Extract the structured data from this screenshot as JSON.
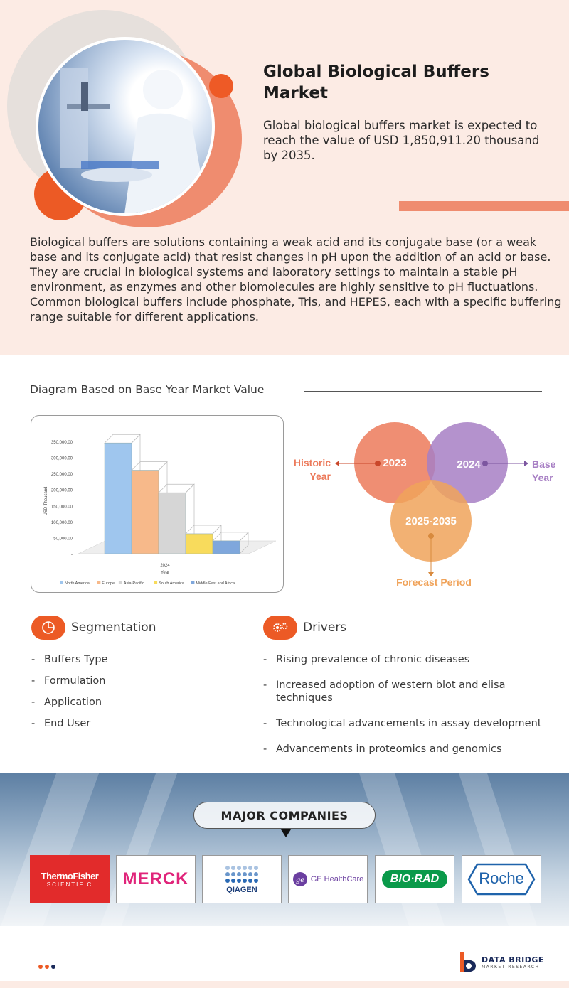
{
  "hero": {
    "title": "Global Biological Buffers Market",
    "subtitle": "Global biological buffers market is expected to reach the value of USD 1,850,911.20 thousand by 2035.",
    "description": "Biological buffers are solutions containing a weak acid and its conjugate base (or a weak base and its conjugate acid) that resist changes in pH upon the addition of an acid or base. They are crucial in biological systems and laboratory settings to maintain a stable pH environment, as enzymes and other biomolecules are highly sensitive to pH fluctuations. Common biological buffers include phosphate, Tris, and HEPES, each with a specific buffering range suitable for different applications."
  },
  "diagram": {
    "title": "Diagram Based on Base Year Market Value"
  },
  "chart_data": {
    "type": "bar",
    "title": "",
    "xlabel": "Year",
    "ylabel": "USD Thousand",
    "categories": [
      "2024"
    ],
    "series": [
      {
        "name": "North America",
        "values": [
          345000
        ],
        "color": "#9fc6ee"
      },
      {
        "name": "Europe",
        "values": [
          260000
        ],
        "color": "#f7b98a"
      },
      {
        "name": "Asia-Pacific",
        "values": [
          190000
        ],
        "color": "#d6d6d6"
      },
      {
        "name": "South America",
        "values": [
          62000
        ],
        "color": "#f8db5c"
      },
      {
        "name": "Middle East and Africa",
        "values": [
          40000
        ],
        "color": "#7fa7dc"
      }
    ],
    "yticks": [
      "350,000.00",
      "300,000.00",
      "250,000.00",
      "200,000.00",
      "150,000.00",
      "100,000.00",
      "50,000.00",
      "-"
    ],
    "ylim": [
      0,
      350000
    ],
    "legend": "bottom"
  },
  "venn": {
    "historic": "2023",
    "base": "2024",
    "forecast": "2025-2035",
    "historic_label": [
      "Historic",
      "Year"
    ],
    "base_label": [
      "Base",
      "Year"
    ],
    "forecast_label": "Forecast Period",
    "colors": {
      "historic": "#ec7a5b",
      "base": "#a77fc4",
      "forecast": "#f0a35a"
    }
  },
  "segmentation": {
    "title": "Segmentation",
    "items": [
      "Buffers Type",
      "Formulation",
      "Application",
      "End User"
    ]
  },
  "drivers": {
    "title": "Drivers",
    "items": [
      "Rising prevalence of chronic diseases",
      "Increased adoption of western blot and elisa techniques",
      "Technological advancements in assay development",
      "Advancements in proteomics and genomics"
    ]
  },
  "companies": {
    "title": "MAJOR COMPANIES",
    "thermo": [
      "ThermoFisher",
      "SCIENTIFIC"
    ],
    "merck": "MERCK",
    "qiagen": "QIAGEN",
    "ge": "GE HealthCare",
    "biorad": "BIO·RAD",
    "roche": "Roche"
  },
  "footer": {
    "brand": "DATA BRIDGE",
    "tagline": "MARKET RESEARCH"
  },
  "accent": "#ec5a25"
}
